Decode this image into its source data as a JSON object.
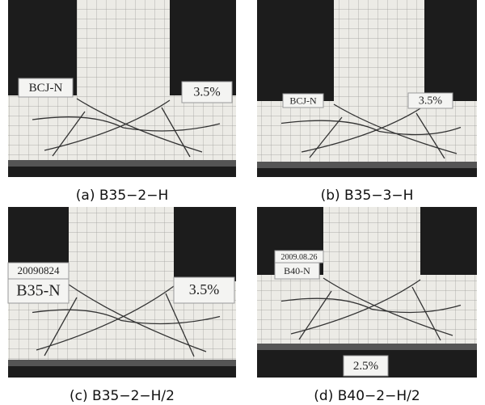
{
  "panels": [
    {
      "caption": "(a) B35−2−H",
      "labels": [
        "BCJ-N",
        "3.5%"
      ]
    },
    {
      "caption": "(b) B35−3−H",
      "labels": [
        "BCJ-N",
        "3.5%"
      ]
    },
    {
      "caption": "(c) B35−2−H/2",
      "labels": [
        "20090824",
        "B35-N",
        "3.5%"
      ]
    },
    {
      "caption": "(d) B40−2−H/2",
      "labels": [
        "2009.08.26",
        "B40-N",
        "2.5%"
      ]
    }
  ]
}
